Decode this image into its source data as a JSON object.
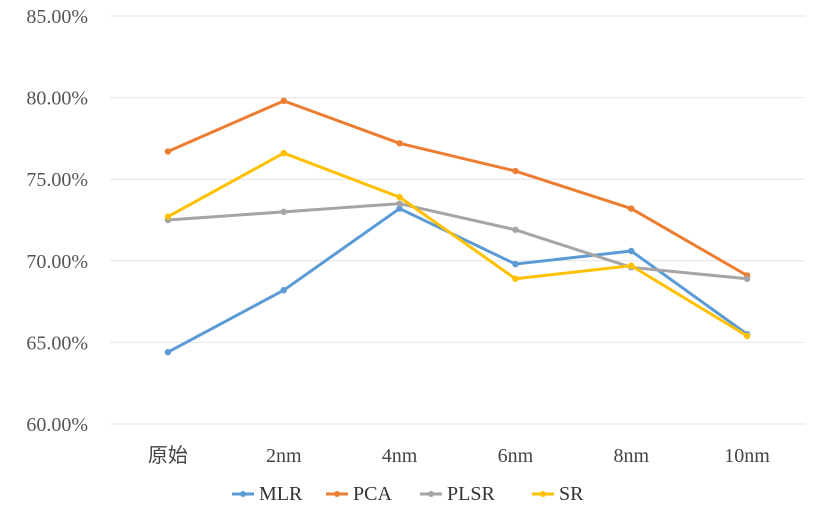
{
  "chart_data": {
    "type": "line",
    "categories": [
      "原始",
      "2nm",
      "4nm",
      "6nm",
      "8nm",
      "10nm"
    ],
    "ylim": [
      60,
      85
    ],
    "yticks": [
      60,
      65,
      70,
      75,
      80,
      85
    ],
    "ytick_labels": [
      "60.00%",
      "65.00%",
      "70.00%",
      "75.00%",
      "80.00%",
      "85.00%"
    ],
    "grid": true,
    "legend_position": "bottom",
    "series": [
      {
        "name": "MLR",
        "color": "#5B9BD5",
        "values": [
          64.4,
          68.2,
          73.2,
          69.8,
          70.6,
          65.5
        ]
      },
      {
        "name": "PCA",
        "color": "#ED7D31",
        "values": [
          76.7,
          79.8,
          77.2,
          75.5,
          73.2,
          69.1
        ]
      },
      {
        "name": "PLSR",
        "color": "#A5A5A5",
        "values": [
          72.5,
          73.0,
          73.5,
          71.9,
          69.6,
          68.9
        ]
      },
      {
        "name": "SR",
        "color": "#FFC000",
        "values": [
          72.7,
          76.6,
          73.9,
          68.9,
          69.7,
          65.4
        ]
      }
    ]
  }
}
